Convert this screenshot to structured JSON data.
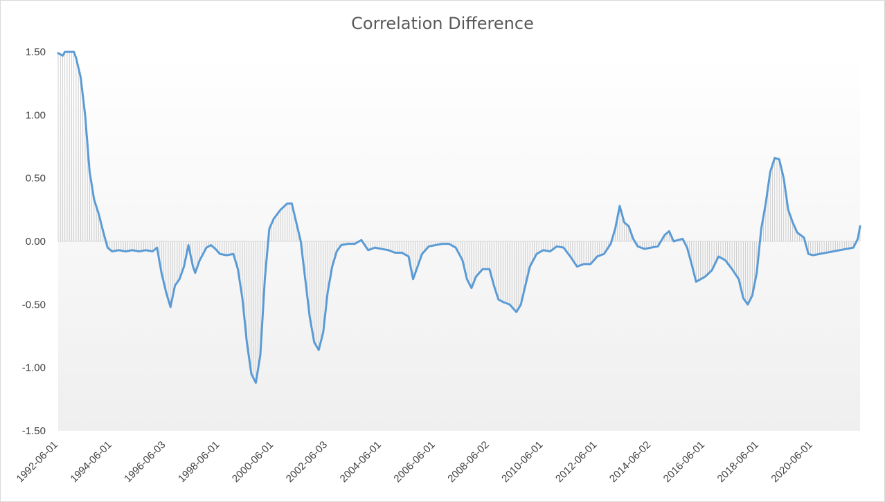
{
  "chart_data": {
    "type": "line",
    "title": "Correlation Difference",
    "xlabel": "",
    "ylabel": "",
    "ylim": [
      -1.5,
      1.5
    ],
    "y_ticks": [
      "1.50",
      "1.00",
      "0.50",
      "0.00",
      "-0.50",
      "-1.00",
      "-1.50"
    ],
    "x_tick_labels": [
      "1992-06-01",
      "1994-06-01",
      "1996-06-03",
      "1998-06-01",
      "2000-06-01",
      "2002-06-03",
      "2004-06-01",
      "2006-06-01",
      "2008-06-02",
      "2010-06-01",
      "2012-06-01",
      "2014-06-02",
      "2016-06-01",
      "2018-06-01",
      "2020-06-01"
    ],
    "x_range": [
      "1992-06",
      "2022-03"
    ],
    "line_color": "#5b9bd5",
    "drop_line_color": "#bfbfbf",
    "background_gradient": [
      "#ffffff",
      "#efefef"
    ],
    "grid": false,
    "legend": "none",
    "series": [
      {
        "points": [
          [
            "1992-06",
            1.49
          ],
          [
            "1992-08",
            1.47
          ],
          [
            "1992-10",
            1.55
          ],
          [
            "1992-12",
            1.55
          ],
          [
            "1993-02",
            1.45
          ],
          [
            "1993-04",
            1.3
          ],
          [
            "1993-06",
            1.0
          ],
          [
            "1993-08",
            0.55
          ],
          [
            "1993-10",
            0.33
          ],
          [
            "1993-12",
            0.22
          ],
          [
            "1994-02",
            0.08
          ],
          [
            "1994-04",
            -0.05
          ],
          [
            "1994-06",
            -0.08
          ],
          [
            "1994-09",
            -0.07
          ],
          [
            "1994-12",
            -0.08
          ],
          [
            "1995-03",
            -0.07
          ],
          [
            "1995-06",
            -0.08
          ],
          [
            "1995-09",
            -0.07
          ],
          [
            "1995-12",
            -0.08
          ],
          [
            "1996-02",
            -0.05
          ],
          [
            "1996-04",
            -0.25
          ],
          [
            "1996-06",
            -0.4
          ],
          [
            "1996-08",
            -0.52
          ],
          [
            "1996-10",
            -0.35
          ],
          [
            "1996-12",
            -0.3
          ],
          [
            "1997-02",
            -0.2
          ],
          [
            "1997-04",
            -0.03
          ],
          [
            "1997-06",
            -0.2
          ],
          [
            "1997-07",
            -0.25
          ],
          [
            "1997-09",
            -0.15
          ],
          [
            "1997-12",
            -0.05
          ],
          [
            "1998-02",
            -0.03
          ],
          [
            "1998-04",
            -0.06
          ],
          [
            "1998-06",
            -0.1
          ],
          [
            "1998-09",
            -0.11
          ],
          [
            "1998-12",
            -0.1
          ],
          [
            "1999-02",
            -0.22
          ],
          [
            "1999-04",
            -0.45
          ],
          [
            "1999-06",
            -0.8
          ],
          [
            "1999-08",
            -1.05
          ],
          [
            "1999-10",
            -1.12
          ],
          [
            "1999-12",
            -0.9
          ],
          [
            "2000-02",
            -0.3
          ],
          [
            "2000-04",
            0.1
          ],
          [
            "2000-06",
            0.18
          ],
          [
            "2000-09",
            0.25
          ],
          [
            "2000-12",
            0.3
          ],
          [
            "2001-02",
            0.3
          ],
          [
            "2001-04",
            0.15
          ],
          [
            "2001-06",
            0.0
          ],
          [
            "2001-08",
            -0.3
          ],
          [
            "2001-10",
            -0.6
          ],
          [
            "2001-12",
            -0.8
          ],
          [
            "2002-02",
            -0.86
          ],
          [
            "2002-04",
            -0.72
          ],
          [
            "2002-06",
            -0.4
          ],
          [
            "2002-08",
            -0.2
          ],
          [
            "2002-10",
            -0.08
          ],
          [
            "2002-12",
            -0.03
          ],
          [
            "2003-03",
            -0.02
          ],
          [
            "2003-06",
            -0.02
          ],
          [
            "2003-09",
            0.01
          ],
          [
            "2003-12",
            -0.07
          ],
          [
            "2004-03",
            -0.05
          ],
          [
            "2004-06",
            -0.06
          ],
          [
            "2004-09",
            -0.07
          ],
          [
            "2004-12",
            -0.09
          ],
          [
            "2005-03",
            -0.09
          ],
          [
            "2005-06",
            -0.12
          ],
          [
            "2005-08",
            -0.3
          ],
          [
            "2005-10",
            -0.2
          ],
          [
            "2005-12",
            -0.1
          ],
          [
            "2006-03",
            -0.04
          ],
          [
            "2006-06",
            -0.03
          ],
          [
            "2006-09",
            -0.02
          ],
          [
            "2006-12",
            -0.02
          ],
          [
            "2007-03",
            -0.05
          ],
          [
            "2007-06",
            -0.15
          ],
          [
            "2007-08",
            -0.3
          ],
          [
            "2007-10",
            -0.37
          ],
          [
            "2007-12",
            -0.28
          ],
          [
            "2008-03",
            -0.22
          ],
          [
            "2008-06",
            -0.22
          ],
          [
            "2008-08",
            -0.35
          ],
          [
            "2008-10",
            -0.46
          ],
          [
            "2008-12",
            -0.48
          ],
          [
            "2009-03",
            -0.5
          ],
          [
            "2009-06",
            -0.56
          ],
          [
            "2009-08",
            -0.5
          ],
          [
            "2009-10",
            -0.35
          ],
          [
            "2009-12",
            -0.2
          ],
          [
            "2010-03",
            -0.1
          ],
          [
            "2010-06",
            -0.07
          ],
          [
            "2010-09",
            -0.08
          ],
          [
            "2010-12",
            -0.04
          ],
          [
            "2011-03",
            -0.05
          ],
          [
            "2011-06",
            -0.12
          ],
          [
            "2011-09",
            -0.2
          ],
          [
            "2011-12",
            -0.18
          ],
          [
            "2012-03",
            -0.18
          ],
          [
            "2012-06",
            -0.12
          ],
          [
            "2012-09",
            -0.1
          ],
          [
            "2012-12",
            -0.02
          ],
          [
            "2013-02",
            0.1
          ],
          [
            "2013-04",
            0.28
          ],
          [
            "2013-06",
            0.15
          ],
          [
            "2013-08",
            0.12
          ],
          [
            "2013-10",
            0.02
          ],
          [
            "2013-12",
            -0.04
          ],
          [
            "2014-03",
            -0.06
          ],
          [
            "2014-06",
            -0.05
          ],
          [
            "2014-09",
            -0.04
          ],
          [
            "2014-12",
            0.05
          ],
          [
            "2015-02",
            0.08
          ],
          [
            "2015-04",
            0.0
          ],
          [
            "2015-06",
            0.01
          ],
          [
            "2015-08",
            0.02
          ],
          [
            "2015-10",
            -0.05
          ],
          [
            "2015-12",
            -0.18
          ],
          [
            "2016-02",
            -0.32
          ],
          [
            "2016-06",
            -0.28
          ],
          [
            "2016-09",
            -0.23
          ],
          [
            "2016-12",
            -0.12
          ],
          [
            "2017-03",
            -0.15
          ],
          [
            "2017-06",
            -0.22
          ],
          [
            "2017-09",
            -0.3
          ],
          [
            "2017-11",
            -0.45
          ],
          [
            "2018-01",
            -0.5
          ],
          [
            "2018-03",
            -0.43
          ],
          [
            "2018-05",
            -0.25
          ],
          [
            "2018-07",
            0.1
          ],
          [
            "2018-09",
            0.3
          ],
          [
            "2018-11",
            0.55
          ],
          [
            "2019-01",
            0.66
          ],
          [
            "2019-03",
            0.65
          ],
          [
            "2019-05",
            0.5
          ],
          [
            "2019-07",
            0.25
          ],
          [
            "2019-09",
            0.15
          ],
          [
            "2019-11",
            0.07
          ],
          [
            "2020-02",
            0.03
          ],
          [
            "2020-04",
            -0.1
          ],
          [
            "2020-06",
            -0.11
          ],
          [
            "2020-09",
            -0.1
          ],
          [
            "2020-12",
            -0.09
          ],
          [
            "2021-03",
            -0.08
          ],
          [
            "2021-06",
            -0.07
          ],
          [
            "2021-09",
            -0.06
          ],
          [
            "2021-12",
            -0.05
          ],
          [
            "2022-02",
            0.02
          ],
          [
            "2022-03",
            0.12
          ]
        ]
      }
    ]
  }
}
